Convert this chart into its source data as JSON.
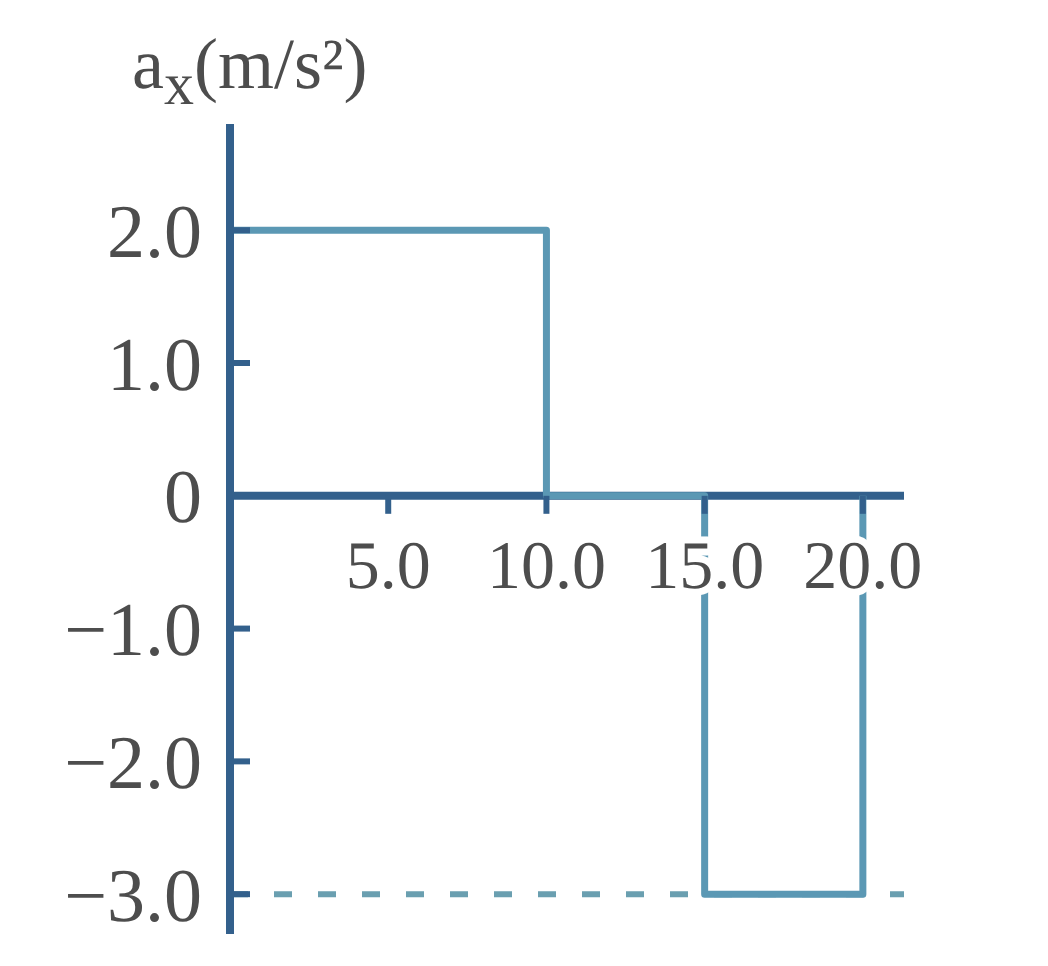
{
  "chart_data": {
    "type": "step",
    "ylabel": "a$_{x}$(m/s²)",
    "x": [
      0,
      10,
      15,
      20
    ],
    "values": [
      2,
      0,
      -3,
      0
    ],
    "color": "#5b98b4",
    "marker": "none",
    "xlim": [
      0,
      21.3
    ],
    "xticks": [
      {
        "value": 5,
        "label": "5.0"
      },
      {
        "value": 10,
        "label": "10.0"
      },
      {
        "value": 15,
        "label": "15.0"
      },
      {
        "value": 20,
        "label": "20.0"
      }
    ],
    "ylim": [
      -3.3,
      2.8
    ],
    "yticks": [
      {
        "value": -3,
        "label": "−3.0"
      },
      {
        "value": -2,
        "label": "−2.0"
      },
      {
        "value": -1,
        "label": "−1.0"
      },
      {
        "value": 0,
        "label": "0"
      },
      {
        "value": 1,
        "label": "1.0"
      },
      {
        "value": 2,
        "label": "2.0"
      }
    ],
    "ref_lines": [
      {
        "axis": "y",
        "value": -3,
        "line_style": "dashed",
        "color": "#6a9fb0"
      }
    ]
  }
}
